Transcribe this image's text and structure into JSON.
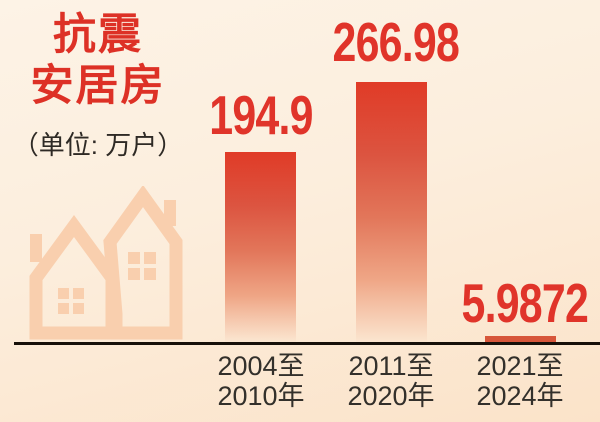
{
  "chart_data": {
    "type": "bar",
    "title": "抗震安居房",
    "title_lines": [
      "抗震",
      "安居房"
    ],
    "unit_label": "（单位: 万户）",
    "categories": [
      "2004至2010年",
      "2011至2020年",
      "2021至2024年"
    ],
    "category_lines": [
      [
        "2004至",
        "2010年"
      ],
      [
        "2011至",
        "2020年"
      ],
      [
        "2021至",
        "2024年"
      ]
    ],
    "values": [
      194.9,
      266.98,
      5.9872
    ],
    "value_labels": [
      "194.9",
      "266.98",
      "5.9872"
    ],
    "ylim": [
      0,
      280
    ],
    "grid": false,
    "legend_position": "none",
    "colors": {
      "title_text": "#dd3126",
      "value_text": "#e0342a",
      "bar_top": "#e03b27",
      "bar_small": "#d7563a",
      "axis_line": "#171009",
      "tick_text": "#33302b",
      "background": "#fceedd",
      "watermark": "#f9cfae"
    }
  }
}
